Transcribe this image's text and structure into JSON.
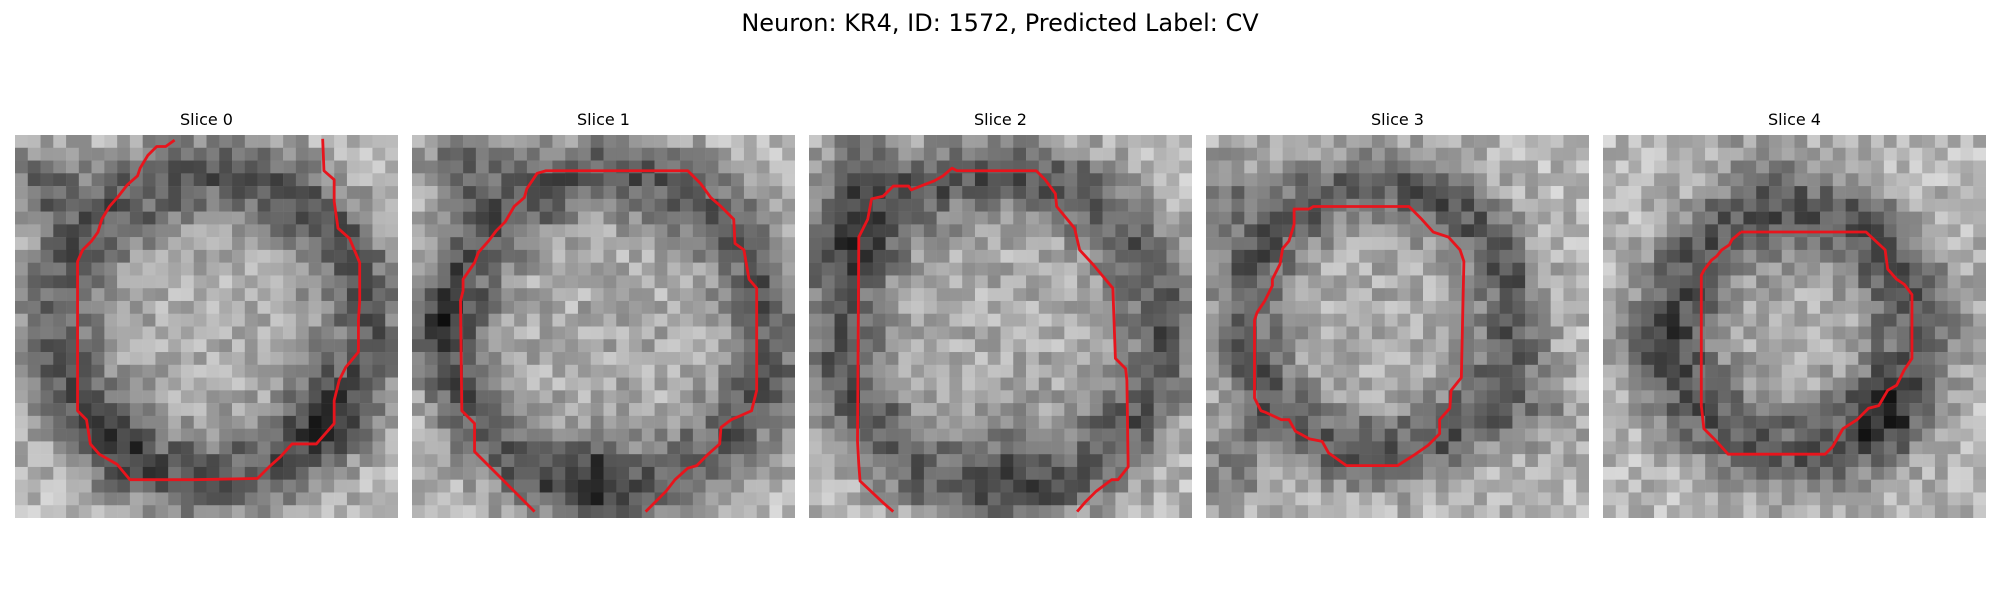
{
  "figure": {
    "title": "Neuron: KR4, ID: 1572, Predicted Label: CV"
  },
  "colors": {
    "contour": "#e8141c",
    "background": "#ffffff",
    "colormap": "grayscale"
  },
  "panels": [
    {
      "title": "Slice 0"
    },
    {
      "title": "Slice 1"
    },
    {
      "title": "Slice 2"
    },
    {
      "title": "Slice 3"
    },
    {
      "title": "Slice 4"
    }
  ]
}
